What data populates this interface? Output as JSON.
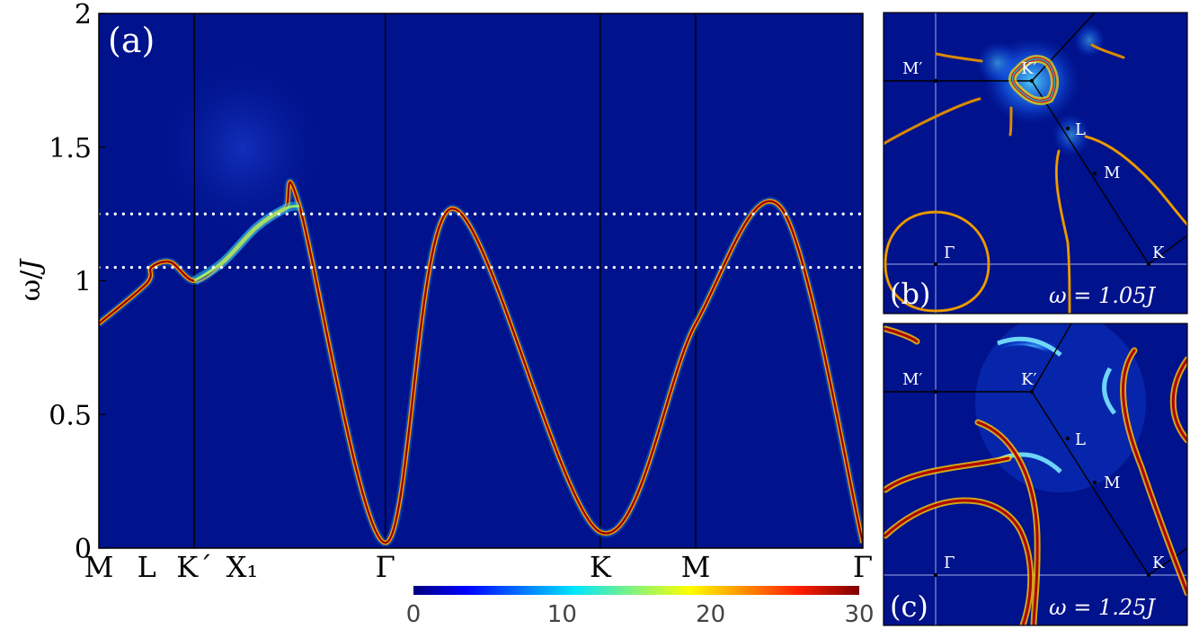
{
  "colors": {
    "background": "#00128c",
    "band_hot": "#8a0000",
    "band_warm": "#ff9a00",
    "band_cool": "#22d8ff",
    "guide_white": "#ffffff"
  },
  "panel_a": {
    "label": "(a)",
    "ylabel_main": "ω/",
    "ylabel_italic": "J",
    "dotted_levels": [
      1.05,
      1.25
    ]
  },
  "chart_data": {
    "type": "heatmap",
    "ylim": [
      0,
      2
    ],
    "yticks": [
      {
        "value": 0,
        "label": "0"
      },
      {
        "value": 0.5,
        "label": "0.5"
      },
      {
        "value": 1,
        "label": "1"
      },
      {
        "value": 1.5,
        "label": "1.5"
      },
      {
        "value": 2,
        "label": "2"
      }
    ],
    "path_labels": [
      "M",
      "L",
      "K´",
      "X₁",
      "Γ",
      "K",
      "M",
      "Γ"
    ],
    "path_positions": [
      0,
      0.5,
      1,
      1.5,
      3,
      5.25,
      6.25,
      8
    ],
    "vertical_lines_at": [
      1,
      3,
      5.25,
      6.25
    ],
    "dispersion": [
      [
        0,
        0.84
      ],
      [
        0.5,
        0.99
      ],
      [
        0.55,
        1.05
      ],
      [
        0.75,
        1.07
      ],
      [
        1,
        1.0
      ],
      [
        1.3,
        1.07
      ],
      [
        1.65,
        1.2
      ],
      [
        1.95,
        1.27
      ],
      [
        2.1,
        1.28
      ],
      [
        3,
        0.02
      ],
      [
        3.7,
        1.27
      ],
      [
        5.25,
        0.06
      ],
      [
        6.25,
        0.84
      ],
      [
        7.15,
        1.27
      ],
      [
        8,
        0.02
      ]
    ],
    "colorbar": {
      "range": [
        0,
        30
      ],
      "ticks": [
        {
          "value": 0,
          "label": "0"
        },
        {
          "value": 10,
          "label": "10"
        },
        {
          "value": 20,
          "label": "20"
        },
        {
          "value": 30,
          "label": "30"
        }
      ]
    }
  },
  "panel_b": {
    "label": "(b)",
    "omega_text": "ω = 1.05",
    "omega_unit": "J",
    "points": {
      "gamma": "Γ",
      "m_prime": "M′",
      "k_prime": "K′",
      "l": "L",
      "m": "M",
      "k": "K"
    }
  },
  "panel_c": {
    "label": "(c)",
    "omega_text": "ω = 1.25",
    "omega_unit": "J",
    "points": {
      "gamma": "Γ",
      "m_prime": "M′",
      "k_prime": "K′",
      "l": "L",
      "m": "M",
      "k": "K"
    }
  }
}
